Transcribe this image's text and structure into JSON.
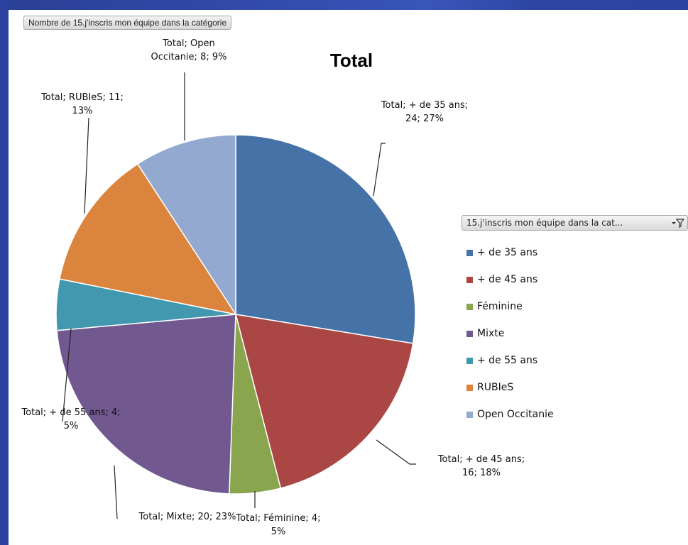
{
  "field_button": "Nombre de 15.j'inscris mon équipe dans la catégorie",
  "legend_field_button": "15.j'inscris mon équipe dans la cat...",
  "icons": {
    "legend_filter": "filter-dropdown-icon"
  },
  "chart_data": {
    "type": "pie",
    "title": "Total",
    "series_name": "Total",
    "categories": [
      "+ de 35 ans",
      "+ de 45 ans",
      "Féminine",
      "Mixte",
      "+ de 55 ans",
      "RUBIeS",
      "Open Occitanie"
    ],
    "values": [
      24,
      16,
      4,
      20,
      4,
      11,
      8
    ],
    "percents": [
      "27%",
      "18%",
      "5%",
      "23%",
      "5%",
      "13%",
      "9%"
    ],
    "colors": [
      "#4572a7",
      "#aa4643",
      "#89a54e",
      "#71588f",
      "#4198af",
      "#db843d",
      "#93a9cf"
    ],
    "legend_position": "right",
    "data_labels": [
      "Total; + de 35 ans;\n24; 27%",
      "Total; + de 45 ans;\n16; 18%",
      "Total; Féminine; 4;\n5%",
      "Total; Mixte; 20; 23%",
      "Total; + de 55 ans; 4;\n5%",
      "Total; RUBIeS;  11;\n13%",
      "Total; Open\nOccitanie; 8; 9%"
    ]
  }
}
